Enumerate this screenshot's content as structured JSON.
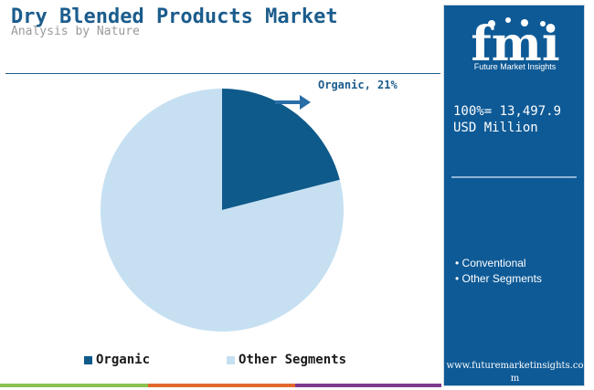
{
  "title": "Dry Blended Products Market",
  "subtitle": "Analysis by Nature",
  "chart_data": {
    "type": "pie",
    "categories": [
      "Organic",
      "Other Segments"
    ],
    "values": [
      21,
      79
    ],
    "colors": [
      "#0e5a8a",
      "#c6e0f2"
    ],
    "annotation": "Organic, 21%",
    "legend": [
      "Organic",
      "Other Segments"
    ],
    "legend_position": "bottom"
  },
  "side_panel": {
    "brand_mark": "fmi",
    "brand_name": "Future Market Insights",
    "total_label": "100%= 13,497.9 USD Million",
    "segments": [
      "• Conventional",
      "• Other Segments"
    ],
    "website": "www.futuremarketinsights.com",
    "background": "#0e5a96"
  },
  "bottom_bar_colors": [
    "#8cc152",
    "#e2682e",
    "#2f6fad",
    "#7d3a8e"
  ]
}
